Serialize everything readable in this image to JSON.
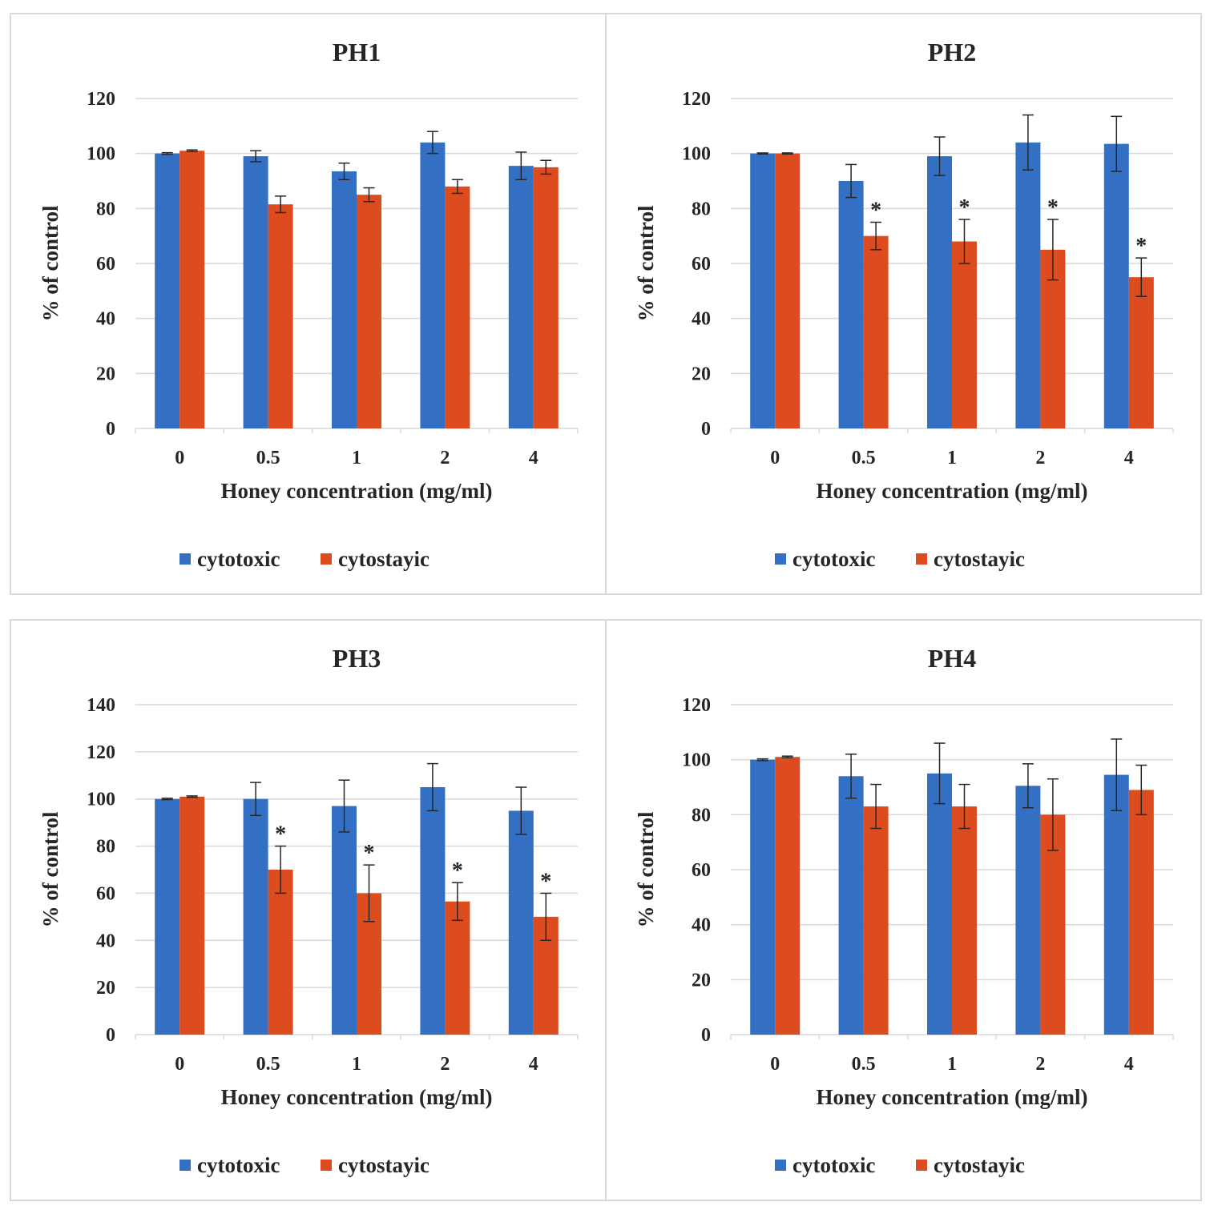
{
  "colors": {
    "cytotoxic": "#3370c4",
    "cytostatic": "#dd4c1f",
    "grid": "#d9d9d9",
    "errorbar": "#262626"
  },
  "legend": [
    "cytotoxic",
    "cytostayic"
  ],
  "chart_data": [
    {
      "type": "bar",
      "title": "PH1",
      "xlabel": "Honey concentration (mg/ml)",
      "ylabel": "% of control",
      "ylim": [
        0,
        120
      ],
      "yticks": [
        "0",
        "20",
        "40",
        "60",
        "80",
        "100",
        "120"
      ],
      "categories": [
        "0",
        "0.5",
        "1",
        "2",
        "4"
      ],
      "grid": true,
      "legend_position": "bottom",
      "series": [
        {
          "name": "cytotoxic",
          "values": [
            100,
            99,
            93.5,
            104,
            95.5
          ],
          "errors": [
            0.3,
            2,
            3,
            4,
            5
          ]
        },
        {
          "name": "cytostayic",
          "values": [
            101,
            81.5,
            85,
            88,
            95
          ],
          "errors": [
            0.3,
            3,
            2.5,
            2.5,
            2.5
          ]
        }
      ],
      "annotations": [
        "",
        "",
        "",
        "",
        ""
      ]
    },
    {
      "type": "bar",
      "title": "PH2",
      "xlabel": "Honey concentration (mg/ml)",
      "ylabel": "% of control",
      "ylim": [
        0,
        120
      ],
      "yticks": [
        "0",
        "20",
        "40",
        "60",
        "80",
        "100",
        "120"
      ],
      "categories": [
        "0",
        "0.5",
        "1",
        "2",
        "4"
      ],
      "grid": true,
      "legend_position": "bottom",
      "series": [
        {
          "name": "cytotoxic",
          "values": [
            100,
            90,
            99,
            104,
            103.5
          ],
          "errors": [
            0.2,
            6,
            7,
            10,
            10
          ]
        },
        {
          "name": "cytostayic",
          "values": [
            100,
            70,
            68,
            65,
            55
          ],
          "errors": [
            0.2,
            5,
            8,
            11,
            7
          ]
        }
      ],
      "annotations": [
        "",
        "*",
        "*",
        "*",
        "*"
      ]
    },
    {
      "type": "bar",
      "title": "PH3",
      "xlabel": "Honey concentration (mg/ml)",
      "ylabel": "% of control",
      "ylim": [
        0,
        140
      ],
      "yticks": [
        "0",
        "20",
        "40",
        "60",
        "80",
        "100",
        "120",
        "140"
      ],
      "categories": [
        "0",
        "0.5",
        "1",
        "2",
        "4"
      ],
      "grid": true,
      "legend_position": "bottom",
      "series": [
        {
          "name": "cytotoxic",
          "values": [
            100,
            100,
            97,
            105,
            95
          ],
          "errors": [
            0.3,
            7,
            11,
            10,
            10
          ]
        },
        {
          "name": "cytostayic",
          "values": [
            101,
            70,
            60,
            56.5,
            50
          ],
          "errors": [
            0.3,
            10,
            12,
            8,
            10
          ]
        }
      ],
      "annotations": [
        "",
        "*",
        "*",
        "*",
        "*"
      ]
    },
    {
      "type": "bar",
      "title": "PH4",
      "xlabel": "Honey concentration (mg/ml)",
      "ylabel": "% of control",
      "ylim": [
        0,
        120
      ],
      "yticks": [
        "0",
        "20",
        "40",
        "60",
        "80",
        "100",
        "120"
      ],
      "categories": [
        "0",
        "0.5",
        "1",
        "2",
        "4"
      ],
      "grid": true,
      "legend_position": "bottom",
      "series": [
        {
          "name": "cytotoxic",
          "values": [
            100,
            94,
            95,
            90.5,
            94.5
          ],
          "errors": [
            0.3,
            8,
            11,
            8,
            13
          ]
        },
        {
          "name": "cytostayic",
          "values": [
            101,
            83,
            83,
            80,
            89
          ],
          "errors": [
            0.3,
            8,
            8,
            13,
            9
          ]
        }
      ],
      "annotations": [
        "",
        "",
        "",
        "",
        ""
      ]
    }
  ]
}
